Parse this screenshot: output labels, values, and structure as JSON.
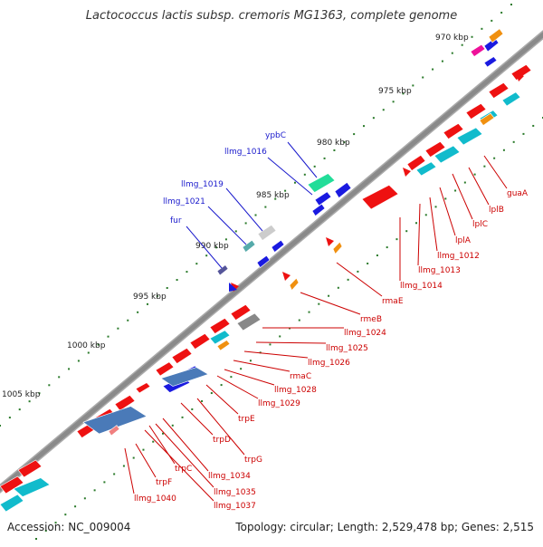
{
  "title": "Lactococcus lactis subsp. cremoris MG1363, complete genome",
  "footer": {
    "accession": "Accession: NC_009004",
    "summary": "Topology: circular; Length: 2,529,478 bp; Genes: 2,515"
  },
  "colors": {
    "backbone": "#8a8a8a",
    "forward_gene": "#ee1111",
    "reverse_gene": "#11bbcc",
    "blue_gene": "#1a1ae0",
    "orange_gene": "#f09010",
    "label_red": "#cc0000",
    "label_blue": "#1a1acc",
    "tick": "#2a7a2a"
  },
  "kbp_ticks": [
    "970 kbp",
    "975 kbp",
    "980 kbp",
    "985 kbp",
    "990 kbp",
    "995 kbp",
    "1000 kbp",
    "1005 kbp"
  ],
  "blue_labels": [
    "ypbC",
    "llmg_1016",
    "llmg_1019",
    "llmg_1021",
    "fur"
  ],
  "red_labels": [
    "guaA",
    "lplB",
    "lplC",
    "lplA",
    "llmg_1012",
    "llmg_1013",
    "llmg_1014",
    "rmaE",
    "rmeB",
    "llmg_1024",
    "llmg_1025",
    "llmg_1026",
    "rmaC",
    "llmg_1028",
    "llmg_1029",
    "trpE",
    "trpD",
    "trpG",
    "trpC",
    "llmg_1034",
    "trpF",
    "llmg_1035",
    "llmg_1037",
    "llmg_1040"
  ]
}
